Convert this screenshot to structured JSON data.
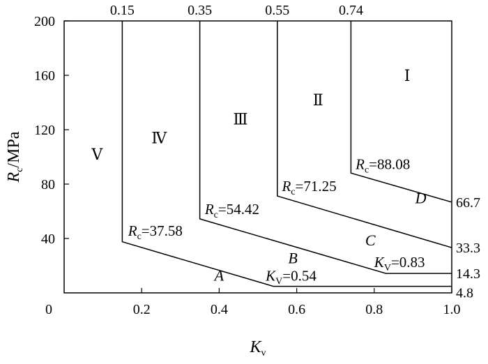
{
  "chart_data": {
    "type": "line",
    "xlabel": {
      "main": "K",
      "sub": "v"
    },
    "ylabel": {
      "main": "R",
      "sub": "c",
      "unit": "/MPa"
    },
    "xlim": [
      0,
      1.0
    ],
    "ylim": [
      0,
      200
    ],
    "x_ticks": [
      {
        "v": 0.2,
        "label": "0.2"
      },
      {
        "v": 0.4,
        "label": "0.4"
      },
      {
        "v": 0.6,
        "label": "0.6"
      },
      {
        "v": 0.8,
        "label": "0.8"
      },
      {
        "v": 1.0,
        "label": "1.0"
      }
    ],
    "y_ticks": [
      {
        "v": 40,
        "label": "40"
      },
      {
        "v": 80,
        "label": "80"
      },
      {
        "v": 120,
        "label": "120"
      },
      {
        "v": 160,
        "label": "160"
      },
      {
        "v": 200,
        "label": "200"
      }
    ],
    "origin_label": "0",
    "top_ticks": [
      {
        "v": 0.15,
        "label": "0.15"
      },
      {
        "v": 0.35,
        "label": "0.35"
      },
      {
        "v": 0.55,
        "label": "0.55"
      },
      {
        "v": 0.74,
        "label": "0.74"
      }
    ],
    "right_labels": [
      {
        "v": 66.7,
        "label": "66.7"
      },
      {
        "v": 33.3,
        "label": "33.3"
      },
      {
        "v": 14.3,
        "label": "14.3"
      },
      {
        "v": 4.8,
        "label": "4.8"
      }
    ],
    "grid": false,
    "series": [
      {
        "name": "A",
        "points": [
          [
            0.15,
            200
          ],
          [
            0.15,
            37.58
          ],
          [
            0.54,
            4.8
          ],
          [
            1.0,
            4.8
          ]
        ]
      },
      {
        "name": "B",
        "points": [
          [
            0.35,
            200
          ],
          [
            0.35,
            54.42
          ],
          [
            0.83,
            14.3
          ],
          [
            1.0,
            14.3
          ]
        ]
      },
      {
        "name": "C",
        "points": [
          [
            0.55,
            200
          ],
          [
            0.55,
            71.25
          ],
          [
            1.0,
            33.3
          ]
        ]
      },
      {
        "name": "D",
        "points": [
          [
            0.74,
            200
          ],
          [
            0.74,
            88.08
          ],
          [
            1.0,
            66.7
          ]
        ]
      }
    ],
    "curve_labels": [
      {
        "text": "A",
        "x": 0.4,
        "y": 13
      },
      {
        "text": "B",
        "x": 0.59,
        "y": 26
      },
      {
        "text": "C",
        "x": 0.79,
        "y": 39
      },
      {
        "text": "D",
        "x": 0.92,
        "y": 70
      }
    ],
    "zones": [
      {
        "text": "Ⅰ",
        "x": 0.885,
        "y": 160
      },
      {
        "text": "Ⅱ",
        "x": 0.655,
        "y": 142
      },
      {
        "text": "Ⅲ",
        "x": 0.455,
        "y": 128
      },
      {
        "text": "Ⅳ",
        "x": 0.245,
        "y": 114
      },
      {
        "text": "Ⅴ",
        "x": 0.085,
        "y": 102
      }
    ],
    "annotations": [
      {
        "var": "R",
        "sub": "c",
        "value": "=37.58",
        "x": 0.165,
        "y": 42
      },
      {
        "var": "R",
        "sub": "c",
        "value": "=54.42",
        "x": 0.363,
        "y": 58
      },
      {
        "var": "R",
        "sub": "c",
        "value": "=71.25",
        "x": 0.562,
        "y": 75
      },
      {
        "var": "R",
        "sub": "c",
        "value": "=88.08",
        "x": 0.752,
        "y": 91
      },
      {
        "var": "K",
        "sub": "V",
        "value": "=0.54",
        "x": 0.52,
        "y": 9
      },
      {
        "var": "K",
        "sub": "V",
        "value": "=0.83",
        "x": 0.8,
        "y": 19
      }
    ]
  }
}
